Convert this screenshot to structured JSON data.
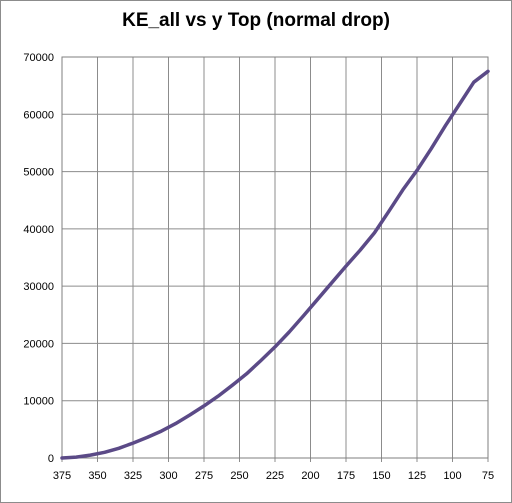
{
  "chart_data": {
    "type": "line",
    "title": "KE_all vs y Top (normal drop)",
    "xlabel": "",
    "ylabel": "",
    "x_reversed": true,
    "xlim": [
      375,
      75
    ],
    "ylim": [
      0,
      70000
    ],
    "x_ticks": [
      375,
      350,
      325,
      300,
      275,
      250,
      225,
      200,
      175,
      150,
      125,
      100,
      75
    ],
    "y_ticks": [
      0,
      10000,
      20000,
      30000,
      40000,
      50000,
      60000,
      70000
    ],
    "grid": true,
    "legend": "none",
    "series": [
      {
        "color": "#5b4a87",
        "x": [
          375,
          365,
          355,
          345,
          335,
          325,
          315,
          305,
          295,
          285,
          275,
          265,
          255,
          245,
          235,
          225,
          215,
          205,
          195,
          185,
          175,
          165,
          155,
          145,
          135,
          125,
          115,
          105,
          95,
          85,
          75
        ],
        "y": [
          0,
          150,
          500,
          1000,
          1700,
          2600,
          3600,
          4700,
          6000,
          7500,
          9100,
          10800,
          12700,
          14700,
          17000,
          19400,
          22000,
          24800,
          27700,
          30600,
          33500,
          36300,
          39300,
          43000,
          46800,
          50200,
          54000,
          58000,
          61800,
          65600,
          67500
        ]
      }
    ]
  }
}
